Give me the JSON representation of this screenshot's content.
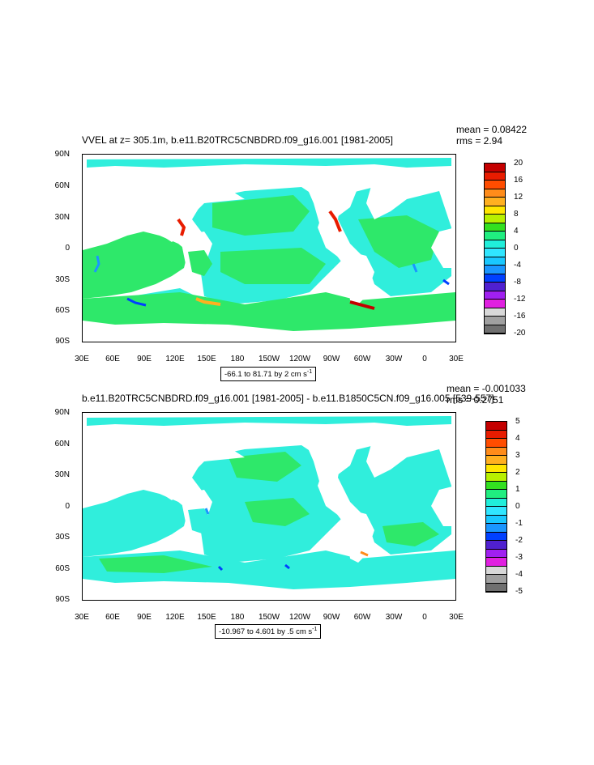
{
  "panels": [
    {
      "title": "VVEL at z= 305.1m, b.e11.B20TRC5CNBDRD.f09_g16.001 [1981-2005]",
      "mean": "mean = 0.08422",
      "rms": "rms = 2.94",
      "range_text": "-66.1 to 81.71 by 2 cm s",
      "range_sup": "-1",
      "legend_labels": [
        "20",
        "16",
        "12",
        "8",
        "4",
        "0",
        "-4",
        "-8",
        "-12",
        "-16",
        "-20"
      ],
      "colors": [
        "#c40000",
        "#e81c00",
        "#ff4d00",
        "#ff8c1a",
        "#ffb020",
        "#ffe600",
        "#b8f000",
        "#33e020",
        "#20ee80",
        "#20eeda",
        "#30e6ff",
        "#19c8ff",
        "#1a96ff",
        "#0040ff",
        "#5020d0",
        "#a020f0",
        "#e020e0",
        "#d8d8d8",
        "#a0a0a0",
        "#707070"
      ]
    },
    {
      "title": "b.e11.B20TRC5CNBDRD.f09_g16.001 [1981-2005] - b.e11.B1850C5CN.f09_g16.005 [539-557]",
      "mean": "mean = -0.001033",
      "rms": "rms = 0.2751",
      "range_text": "-10.967 to 4.601 by .5 cm s",
      "range_sup": "-1",
      "legend_labels": [
        "5",
        "4",
        "3",
        "2",
        "1",
        "0",
        "-1",
        "-2",
        "-3",
        "-4",
        "-5"
      ],
      "colors": [
        "#c40000",
        "#e81c00",
        "#ff4d00",
        "#ff8c1a",
        "#ffb020",
        "#ffe600",
        "#b8f000",
        "#33e020",
        "#20ee80",
        "#20eeda",
        "#30e6ff",
        "#19c8ff",
        "#1a96ff",
        "#0040ff",
        "#5020d0",
        "#a020f0",
        "#e020e0",
        "#d8d8d8",
        "#a0a0a0",
        "#707070"
      ]
    }
  ],
  "lat_labels": [
    "90N",
    "60N",
    "30N",
    "0",
    "30S",
    "60S",
    "90S"
  ],
  "lon_labels": [
    "30E",
    "60E",
    "90E",
    "120E",
    "150E",
    "180",
    "150W",
    "120W",
    "90W",
    "60W",
    "30W",
    "0",
    "30E"
  ],
  "map_colors": {
    "ocean_green": "#2ee86a",
    "ocean_cyan": "#30eedc",
    "land": "#ffffff"
  }
}
